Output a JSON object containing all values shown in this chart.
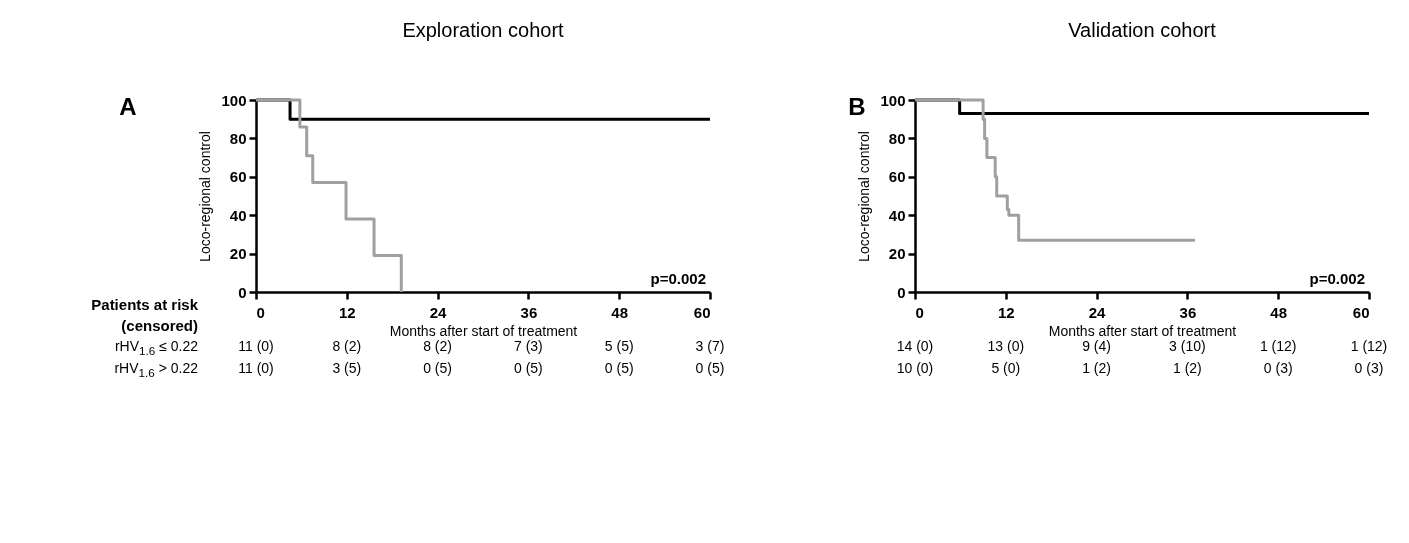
{
  "chart_data": [
    {
      "type": "step",
      "title": "Exploration cohort",
      "xlabel": "Months after start of treatment",
      "ylabel": "Loco-regional control",
      "xlim": [
        0,
        60
      ],
      "xticks": [
        0,
        12,
        24,
        36,
        48,
        60
      ],
      "ylim": [
        0,
        100
      ],
      "yticks": [
        0,
        20,
        40,
        60,
        80,
        100
      ],
      "grid": false,
      "legend": false,
      "series": [
        {
          "color": "#000000",
          "x": [
            0,
            4.5,
            60
          ],
          "values": [
            100,
            90,
            90
          ]
        },
        {
          "color": "#a0a0a0",
          "x": [
            0,
            5.8,
            6.7,
            7.5,
            11.9,
            15.6,
            19.2
          ],
          "values": [
            100,
            86,
            71,
            57,
            38,
            19,
            0
          ]
        }
      ],
      "annotations": [
        "A",
        "p=0.002",
        "Patients at risk",
        "(censored)",
        "rHV$_{1.6}$ ≤ 0.22",
        "rHV$_{1.6}$ > 0.22",
        "11 (0)",
        "8 (2)",
        "8 (2)",
        "7 (3)",
        "5 (5)",
        "3 (7)",
        "11 (0)",
        "3 (5)",
        "0 (5)",
        "0 (5)",
        "0 (5)",
        "0 (5)"
      ]
    },
    {
      "type": "step",
      "title": "Validation cohort",
      "xlabel": "Months after start of treatment",
      "ylabel": "Loco-regional control",
      "xlim": [
        0,
        60
      ],
      "xticks": [
        0,
        12,
        24,
        36,
        48,
        60
      ],
      "ylim": [
        0,
        100
      ],
      "yticks": [
        0,
        20,
        40,
        60,
        80,
        100
      ],
      "grid": false,
      "legend": false,
      "series": [
        {
          "color": "#000000",
          "x": [
            0,
            5.9,
            60
          ],
          "values": [
            100,
            93,
            93
          ]
        },
        {
          "color": "#a0a0a0",
          "x": [
            0,
            9.0,
            9.2,
            9.5,
            10.6,
            10.8,
            12.2,
            12.4,
            13.7,
            37
          ],
          "values": [
            100,
            90,
            80,
            70,
            60,
            50,
            43,
            40,
            27,
            27
          ]
        }
      ],
      "annotations": [
        "B",
        "p=0.002",
        "14 (0)",
        "13 (0)",
        "9 (4)",
        "3 (10)",
        "1 (12)",
        "1 (12)",
        "10 (0)",
        "5 (0)",
        "1 (2)",
        "1 (2)",
        "0 (3)",
        "0 (3)"
      ]
    }
  ]
}
